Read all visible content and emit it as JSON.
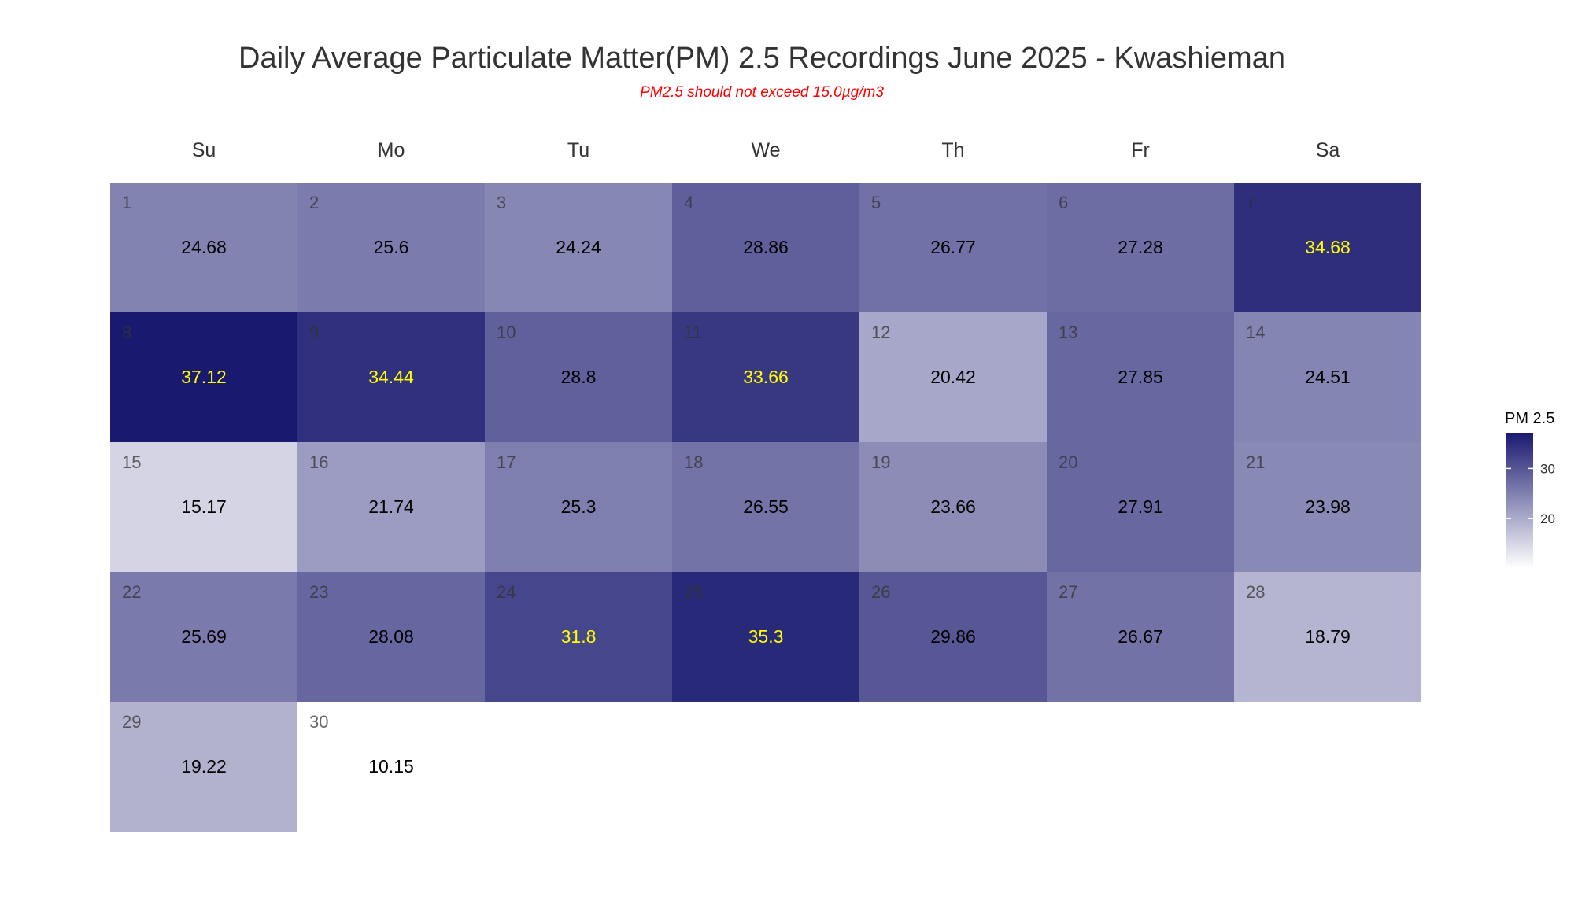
{
  "chart_data": {
    "type": "heatmap",
    "title": "Daily Average Particulate Matter(PM) 2.5 Recordings June 2025 -  Kwashieman",
    "subtitle": "PM2.5 should not exceed 15.0µg/m3",
    "weekdays": [
      "Su",
      "Mo",
      "Tu",
      "We",
      "Th",
      "Fr",
      "Sa"
    ],
    "first_weekday_index": 0,
    "days": [
      {
        "day": 1,
        "value": 24.68,
        "label": "24.68"
      },
      {
        "day": 2,
        "value": 25.6,
        "label": "25.6"
      },
      {
        "day": 3,
        "value": 24.24,
        "label": "24.24"
      },
      {
        "day": 4,
        "value": 28.86,
        "label": "28.86"
      },
      {
        "day": 5,
        "value": 26.77,
        "label": "26.77"
      },
      {
        "day": 6,
        "value": 27.28,
        "label": "27.28"
      },
      {
        "day": 7,
        "value": 34.68,
        "label": "34.68"
      },
      {
        "day": 8,
        "value": 37.12,
        "label": "37.12"
      },
      {
        "day": 9,
        "value": 34.44,
        "label": "34.44"
      },
      {
        "day": 10,
        "value": 28.8,
        "label": "28.8"
      },
      {
        "day": 11,
        "value": 33.66,
        "label": "33.66"
      },
      {
        "day": 12,
        "value": 20.42,
        "label": "20.42"
      },
      {
        "day": 13,
        "value": 27.85,
        "label": "27.85"
      },
      {
        "day": 14,
        "value": 24.51,
        "label": "24.51"
      },
      {
        "day": 15,
        "value": 15.17,
        "label": "15.17"
      },
      {
        "day": 16,
        "value": 21.74,
        "label": "21.74"
      },
      {
        "day": 17,
        "value": 25.3,
        "label": "25.3"
      },
      {
        "day": 18,
        "value": 26.55,
        "label": "26.55"
      },
      {
        "day": 19,
        "value": 23.66,
        "label": "23.66"
      },
      {
        "day": 20,
        "value": 27.91,
        "label": "27.91"
      },
      {
        "day": 21,
        "value": 23.98,
        "label": "23.98"
      },
      {
        "day": 22,
        "value": 25.69,
        "label": "25.69"
      },
      {
        "day": 23,
        "value": 28.08,
        "label": "28.08"
      },
      {
        "day": 24,
        "value": 31.8,
        "label": "31.8"
      },
      {
        "day": 25,
        "value": 35.3,
        "label": "35.3"
      },
      {
        "day": 26,
        "value": 29.86,
        "label": "29.86"
      },
      {
        "day": 27,
        "value": 26.67,
        "label": "26.67"
      },
      {
        "day": 28,
        "value": 18.79,
        "label": "18.79"
      },
      {
        "day": 29,
        "value": 19.22,
        "label": "19.22"
      },
      {
        "day": 30,
        "value": 10.15,
        "label": "10.15"
      }
    ],
    "color_scale": {
      "low": "#ffffff",
      "high": "#191970",
      "min": 10.15,
      "max": 37.12
    },
    "text_colors": {
      "normal": "#000000",
      "high": "#ffff00"
    },
    "text_highlight_threshold": 30,
    "legend": {
      "title": "PM 2.5",
      "ticks": [
        20,
        30
      ],
      "position": "right"
    }
  }
}
